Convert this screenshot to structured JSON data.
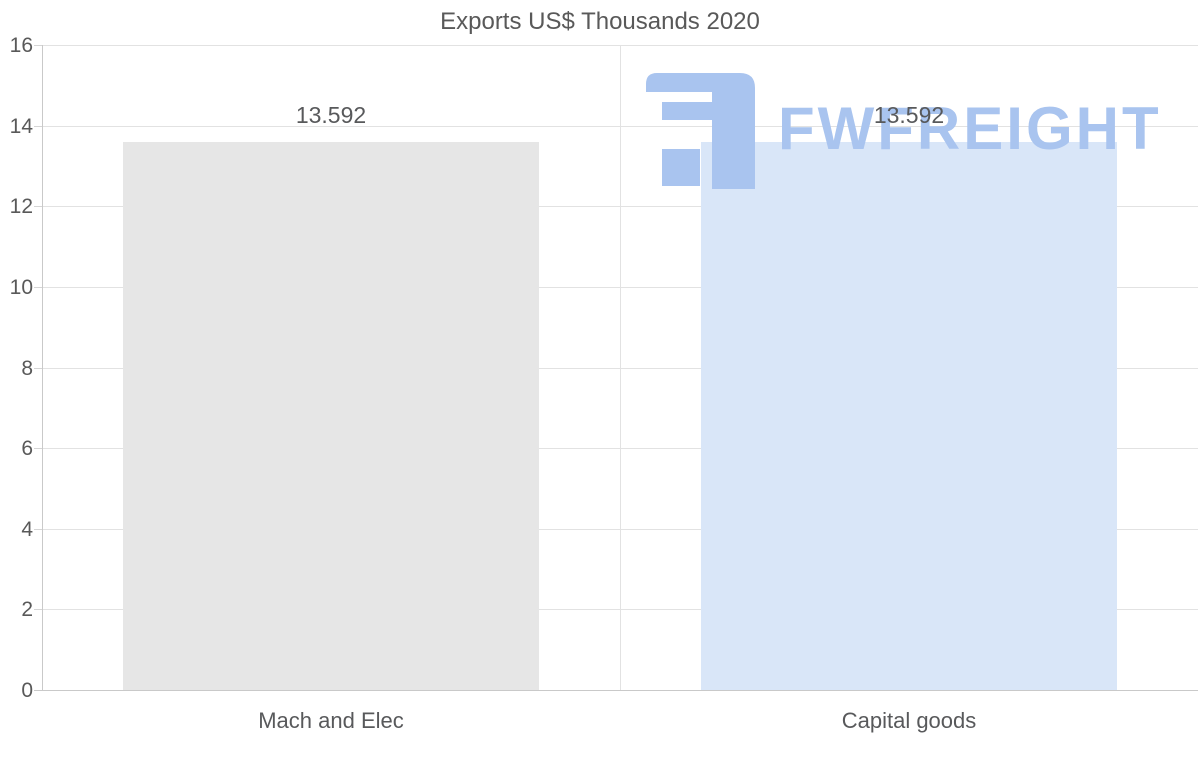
{
  "chart_data": {
    "type": "bar",
    "title": "Exports US$ Thousands 2020",
    "categories": [
      "Mach and Elec",
      "Capital goods"
    ],
    "values": [
      13.592,
      13.592
    ],
    "value_labels": [
      "13.592",
      "13.592"
    ],
    "series": [
      {
        "name": "Exports US$ Thousands 2020",
        "values": [
          13.592,
          13.592
        ]
      }
    ],
    "bar_colors": [
      "#e6e6e6",
      "#d9e6f8"
    ],
    "xlabel": "",
    "ylabel": "",
    "ylim": [
      0,
      16
    ],
    "yticks": [
      0,
      2,
      4,
      6,
      8,
      10,
      12,
      14,
      16
    ],
    "grid": "horizontal gridlines on, one vertical category-boundary gridline",
    "legend": "none"
  },
  "watermark": {
    "text": "FWFREIGHT",
    "logo": "ewfreight-logo",
    "color": "#a9c4ef"
  },
  "colors": {
    "background": "#ffffff",
    "title_text": "#595959",
    "tick_label_text": "#595959",
    "data_label_text": "#58595b",
    "category_label_text": "#58595b",
    "gridline": "#e2e2e2",
    "axis_line": "#c9c9c9",
    "bar_mach_and_elec": "#e6e6e6",
    "bar_capital_goods": "#d9e6f8",
    "watermark_blue": "#a9c4ef"
  }
}
